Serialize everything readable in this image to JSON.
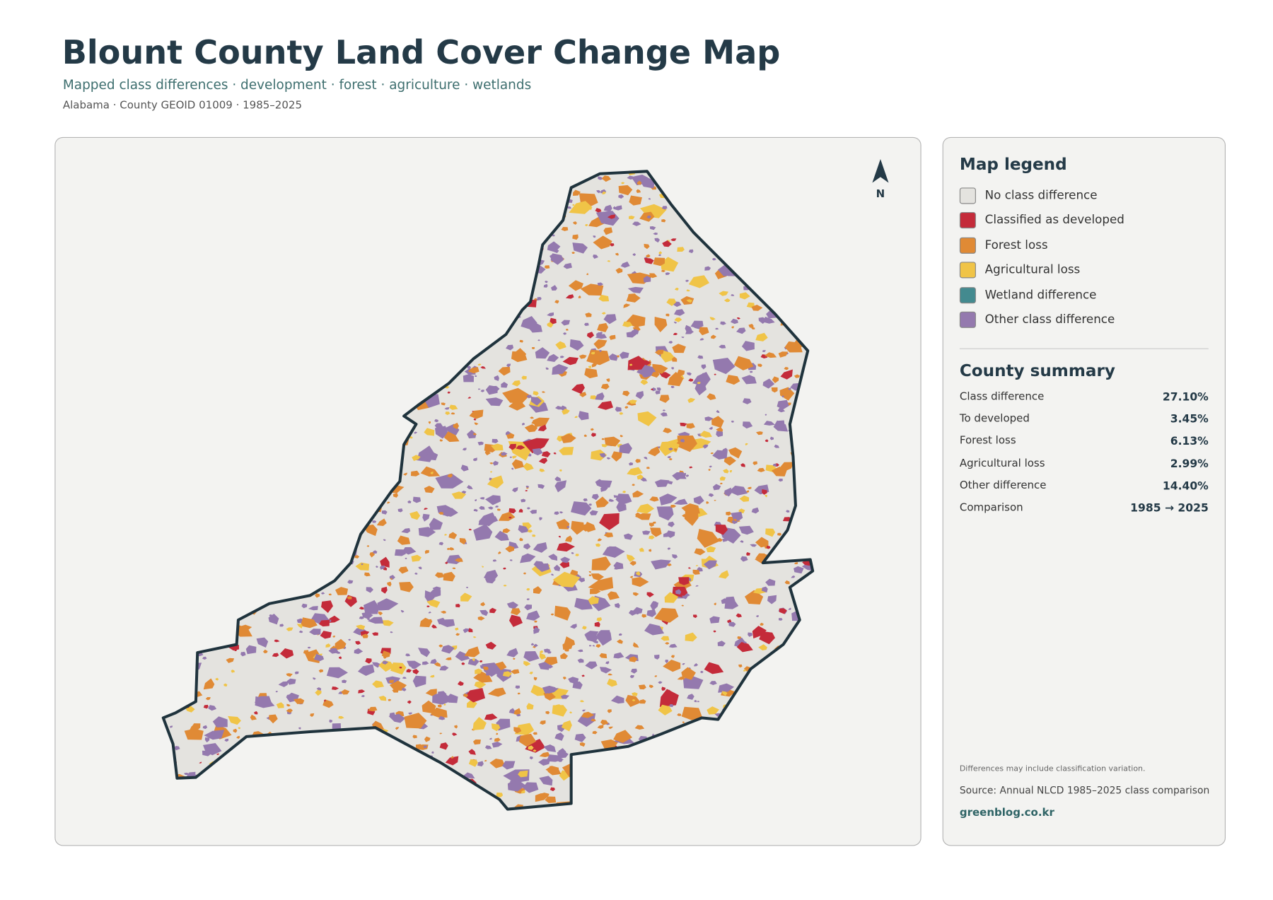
{
  "header": {
    "title": "Blount County Land Cover Change Map",
    "subtitle": "Mapped class differences · development · forest · agriculture · wetlands",
    "meta": "Alabama · County GEOID 01009 · 1985–2025"
  },
  "map": {
    "north": "N"
  },
  "legend": {
    "title": "Map legend",
    "items": [
      {
        "label": "No class difference",
        "color": "#e4e3df"
      },
      {
        "label": "Classified as developed",
        "color": "#c42b3a"
      },
      {
        "label": "Forest loss",
        "color": "#e08a35"
      },
      {
        "label": "Agricultural loss",
        "color": "#f0c447"
      },
      {
        "label": "Wetland difference",
        "color": "#438a8f"
      },
      {
        "label": "Other class difference",
        "color": "#9479ae"
      }
    ]
  },
  "summary": {
    "title": "County summary",
    "rows": [
      [
        "Class difference",
        "27.10%"
      ],
      [
        "To developed",
        "3.45%"
      ],
      [
        "Forest loss",
        "6.13%"
      ],
      [
        "Agricultural loss",
        "2.99%"
      ],
      [
        "Other difference",
        "14.40%"
      ],
      [
        "Comparison",
        "1985 → 2025"
      ]
    ]
  },
  "footer": {
    "note": "Differences may include classification variation.",
    "source": "Source: Annual NLCD 1985–2025 class comparison",
    "site": "greenblog.co.kr"
  }
}
